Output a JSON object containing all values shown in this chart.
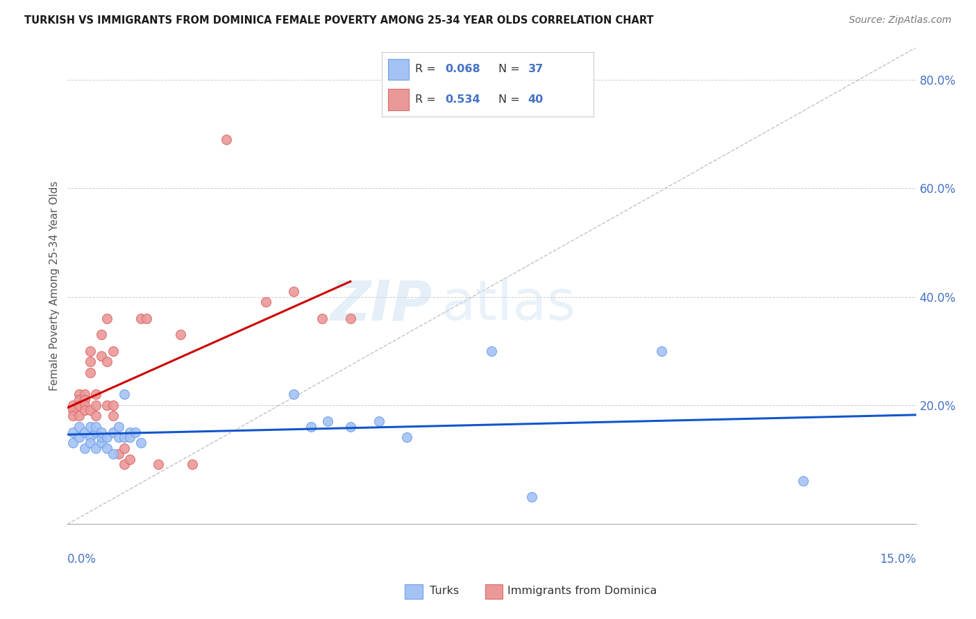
{
  "title": "TURKISH VS IMMIGRANTS FROM DOMINICA FEMALE POVERTY AMONG 25-34 YEAR OLDS CORRELATION CHART",
  "source": "Source: ZipAtlas.com",
  "ylabel": "Female Poverty Among 25-34 Year Olds",
  "y_ticks": [
    0.0,
    0.2,
    0.4,
    0.6,
    0.8
  ],
  "y_tick_labels": [
    "",
    "20.0%",
    "40.0%",
    "60.0%",
    "80.0%"
  ],
  "x_min": 0.0,
  "x_max": 0.15,
  "y_min": -0.02,
  "y_max": 0.86,
  "turks_color": "#a4c2f4",
  "turks_edge_color": "#6d9eeb",
  "dominica_color": "#ea9999",
  "dominica_edge_color": "#e06666",
  "regression_turks_color": "#1155cc",
  "regression_dominica_color": "#cc0000",
  "R_turks": 0.068,
  "N_turks": 37,
  "R_dominica": 0.534,
  "N_dominica": 40,
  "watermark_zip": "ZIP",
  "watermark_atlas": "atlas",
  "background_color": "#ffffff",
  "grid_color": "#cccccc",
  "figsize": [
    14.06,
    8.92
  ],
  "dpi": 100,
  "turks_x": [
    0.001,
    0.001,
    0.002,
    0.002,
    0.003,
    0.003,
    0.004,
    0.004,
    0.004,
    0.005,
    0.005,
    0.005,
    0.006,
    0.006,
    0.006,
    0.007,
    0.007,
    0.008,
    0.008,
    0.009,
    0.009,
    0.01,
    0.01,
    0.011,
    0.011,
    0.012,
    0.013,
    0.04,
    0.043,
    0.046,
    0.05,
    0.055,
    0.06,
    0.075,
    0.082,
    0.105,
    0.13
  ],
  "turks_y": [
    0.15,
    0.13,
    0.16,
    0.14,
    0.15,
    0.12,
    0.14,
    0.13,
    0.16,
    0.15,
    0.12,
    0.16,
    0.13,
    0.14,
    0.15,
    0.14,
    0.12,
    0.15,
    0.11,
    0.14,
    0.16,
    0.14,
    0.22,
    0.15,
    0.14,
    0.15,
    0.13,
    0.22,
    0.16,
    0.17,
    0.16,
    0.17,
    0.14,
    0.3,
    0.03,
    0.3,
    0.06
  ],
  "dominica_x": [
    0.001,
    0.001,
    0.001,
    0.002,
    0.002,
    0.002,
    0.002,
    0.003,
    0.003,
    0.003,
    0.003,
    0.004,
    0.004,
    0.004,
    0.004,
    0.005,
    0.005,
    0.005,
    0.006,
    0.006,
    0.007,
    0.007,
    0.007,
    0.008,
    0.008,
    0.008,
    0.009,
    0.01,
    0.01,
    0.011,
    0.013,
    0.014,
    0.016,
    0.02,
    0.022,
    0.028,
    0.035,
    0.04,
    0.045,
    0.05
  ],
  "dominica_y": [
    0.2,
    0.19,
    0.18,
    0.22,
    0.21,
    0.2,
    0.18,
    0.22,
    0.21,
    0.2,
    0.19,
    0.26,
    0.3,
    0.28,
    0.19,
    0.22,
    0.2,
    0.18,
    0.29,
    0.33,
    0.36,
    0.28,
    0.2,
    0.3,
    0.2,
    0.18,
    0.11,
    0.09,
    0.12,
    0.1,
    0.36,
    0.36,
    0.09,
    0.33,
    0.09,
    0.69,
    0.39,
    0.41,
    0.36,
    0.36
  ]
}
